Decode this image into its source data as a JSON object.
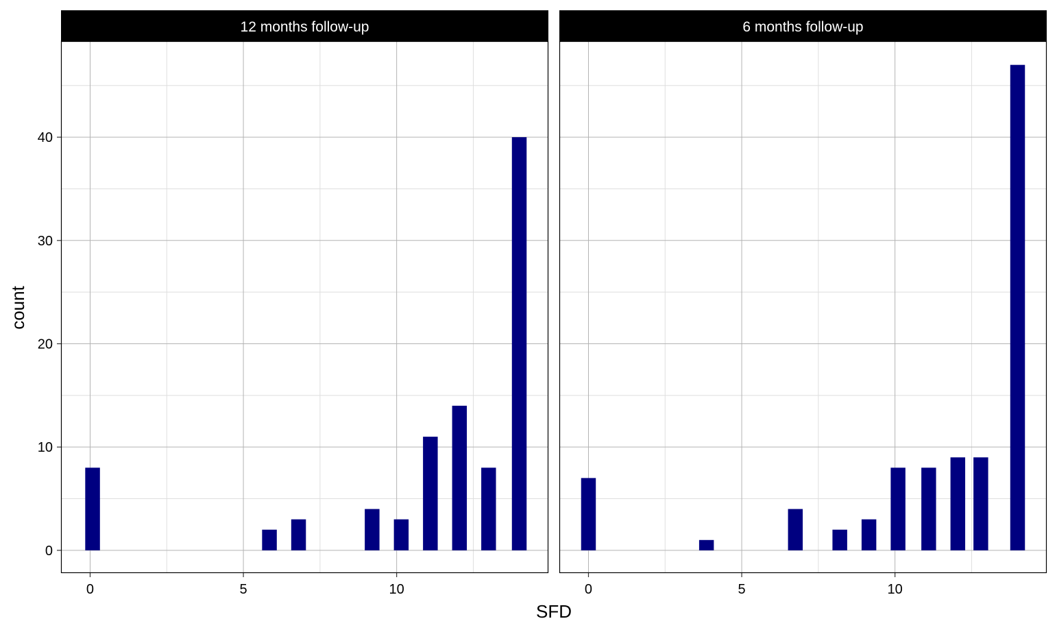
{
  "chart_data": {
    "type": "bar",
    "xlabel": "SFD",
    "ylabel": "count",
    "xlim": [
      -0.95,
      14.95
    ],
    "ylim": [
      -2.2,
      49.3
    ],
    "x_ticks": [
      0,
      5,
      10
    ],
    "y_ticks": [
      0,
      10,
      20,
      30,
      40
    ],
    "x_minor_ticks": [
      2.5,
      7.5,
      12.5
    ],
    "y_minor_ticks": [
      5,
      15,
      25,
      35,
      45
    ],
    "bar_width": 0.48,
    "grid": true,
    "colors": {
      "bar": "#000080",
      "strip_bg": "#000000",
      "strip_text": "#ffffff",
      "major_grid": "#b3b3b3",
      "minor_grid": "#dedede",
      "panel_border": "#000000"
    },
    "panels": [
      {
        "title": "12 months follow-up",
        "series": [
          {
            "x": [
              0.08,
              5.85,
              6.8,
              9.2,
              10.15,
              11.1,
              12.05,
              13.0,
              14.0
            ],
            "values": [
              8,
              2,
              3,
              4,
              3,
              11,
              14,
              8,
              40
            ]
          }
        ]
      },
      {
        "title": "6 months follow-up",
        "series": [
          {
            "x": [
              0.0,
              3.85,
              6.75,
              8.2,
              9.15,
              10.1,
              11.1,
              12.05,
              12.8,
              14.0
            ],
            "values": [
              7,
              1,
              4,
              2,
              3,
              8,
              8,
              9,
              9,
              47
            ]
          }
        ]
      }
    ]
  }
}
